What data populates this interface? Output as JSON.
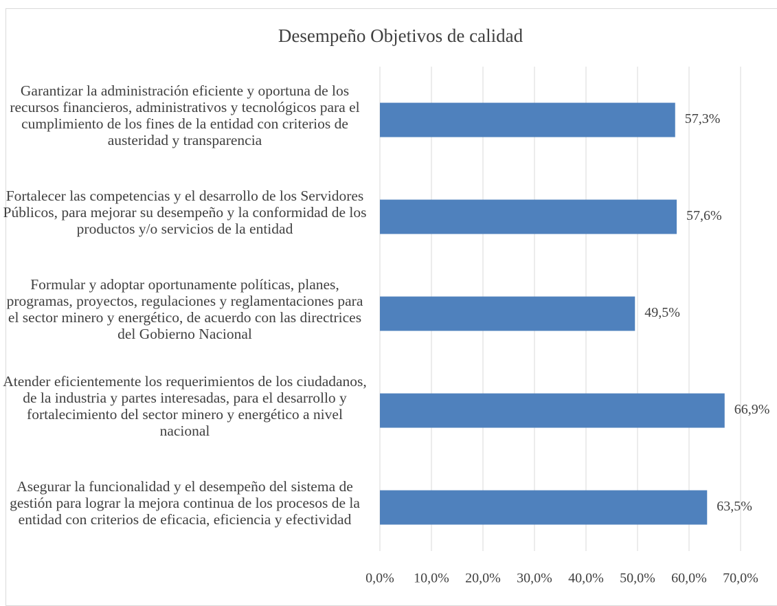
{
  "chart_data": {
    "type": "hbar",
    "title": "Desempeño Objetivos de calidad",
    "categories": [
      "Garantizar la administración eficiente y oportuna de los recursos financieros, administrativos y tecnológicos para el cumplimiento de los fines de la entidad con criterios de austeridad y transparencia",
      "Fortalecer las competencias y el desarrollo de los Servidores Públicos, para mejorar su desempeño y la conformidad de los productos y/o servicios de la entidad",
      "Formular y adoptar oportunamente políticas, planes, programas, proyectos, regulaciones y reglamentaciones para el sector minero y energético, de acuerdo con las directrices del Gobierno Nacional",
      "Atender eficientemente los requerimientos de los ciudadanos, de la industria y partes interesadas, para el desarrollo y fortalecimiento del sector minero y energético a nivel nacional",
      "Asegurar la funcionalidad y el desempeño del sistema de gestión para lograr la mejora continua de los procesos de la entidad con criterios de eficacia, eficiencia y efectividad"
    ],
    "values": [
      57.3,
      57.6,
      49.5,
      66.9,
      63.5
    ],
    "value_labels": [
      "57,3%",
      "57,6%",
      "49,5%",
      "66,9%",
      "63,5%"
    ],
    "color": "#4f81bd",
    "xlim": [
      0,
      70
    ],
    "xticks": [
      {
        "value": 0,
        "label": "0,0%"
      },
      {
        "value": 10,
        "label": "10,0%"
      },
      {
        "value": 20,
        "label": "20,0%"
      },
      {
        "value": 30,
        "label": "30,0%"
      },
      {
        "value": 40,
        "label": "40,0%"
      },
      {
        "value": 50,
        "label": "50,0%"
      },
      {
        "value": 60,
        "label": "60,0%"
      },
      {
        "value": 70,
        "label": "70,0%"
      }
    ],
    "grid": true
  }
}
